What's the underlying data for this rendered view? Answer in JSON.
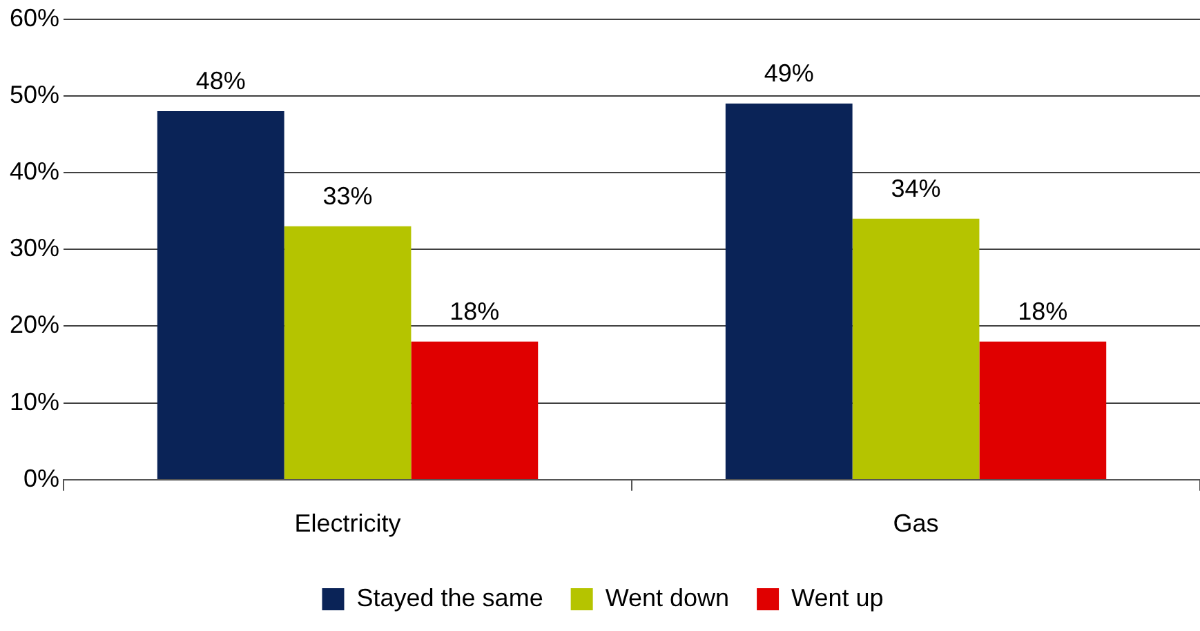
{
  "chart_data": {
    "type": "bar",
    "categories": [
      "Electricity",
      "Gas"
    ],
    "series": [
      {
        "name": "Stayed the same",
        "color": "#0a2357",
        "values": [
          48,
          49
        ],
        "value_labels": [
          "48%",
          "49%"
        ]
      },
      {
        "name": "Went down",
        "color": "#b5c400",
        "values": [
          33,
          34
        ],
        "value_labels": [
          "33%",
          "34%"
        ]
      },
      {
        "name": "Went up",
        "color": "#e00000",
        "values": [
          18,
          18
        ],
        "value_labels": [
          "18%",
          "18%"
        ]
      }
    ],
    "ylim": [
      0,
      60
    ],
    "yticks": [
      {
        "value": 0,
        "label": "0%"
      },
      {
        "value": 10,
        "label": "10%"
      },
      {
        "value": 20,
        "label": "20%"
      },
      {
        "value": 30,
        "label": "30%"
      },
      {
        "value": 40,
        "label": "40%"
      },
      {
        "value": 50,
        "label": "50%"
      },
      {
        "value": 60,
        "label": "60%"
      }
    ],
    "grid": "y",
    "legend": "bottom"
  }
}
